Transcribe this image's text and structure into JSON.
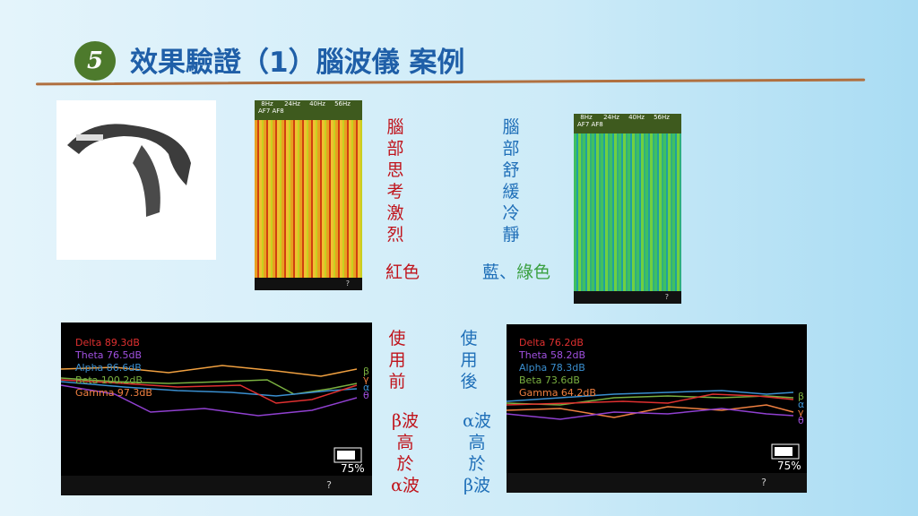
{
  "header": {
    "badge": "5",
    "title": "效果驗證（1）腦波儀 案例"
  },
  "spectrograms": [
    {
      "freq_labels": [
        "8Hz",
        "24Hz",
        "40Hz",
        "56Hz"
      ],
      "channel": "AF7 AF8",
      "help": "?"
    },
    {
      "freq_labels": [
        "8Hz",
        "24Hz",
        "40Hz",
        "56Hz"
      ],
      "channel": "AF7 AF8",
      "help": "?"
    }
  ],
  "notes": {
    "hot": {
      "lines": [
        "腦",
        "部",
        "思",
        "考",
        "激",
        "烈"
      ],
      "color_label": "紅色"
    },
    "calm": {
      "lines": [
        "腦",
        "部",
        "舒",
        "緩",
        "冷",
        "靜"
      ],
      "color_label_blue": "藍、",
      "color_label_green": "綠色"
    },
    "before": {
      "title": [
        "使",
        "用",
        "前"
      ],
      "result": [
        "β波",
        "高",
        "於",
        "α波"
      ]
    },
    "after": {
      "title": [
        "使",
        "用",
        "後"
      ],
      "result": [
        "α波",
        "高",
        "於",
        "β波"
      ]
    }
  },
  "charts": [
    {
      "legend": [
        "Delta 89.3dB",
        "Theta 76.5dB",
        "Alpha 86.6dB",
        "Beta 100.2dB",
        "Gamma 97.3dB"
      ],
      "end_labels": [
        "β",
        "γ",
        "α",
        "θ"
      ],
      "battery": "75%",
      "help": "?"
    },
    {
      "legend": [
        "Delta 76.2dB",
        "Theta 58.2dB",
        "Alpha 78.3dB",
        "Beta 73.6dB",
        "Gamma 64.2dB"
      ],
      "end_labels": [
        "β",
        "α",
        "γ",
        "θ"
      ],
      "battery": "75%",
      "help": "?"
    }
  ]
}
